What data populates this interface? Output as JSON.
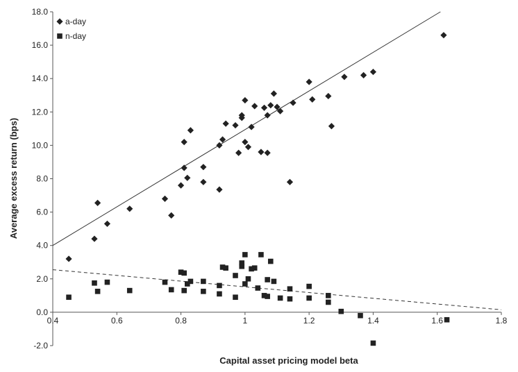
{
  "chart_data": {
    "type": "scatter",
    "title": "",
    "xlabel": "Capital asset pricing model beta",
    "ylabel": "Average excess return (bps)",
    "xlim": [
      0.4,
      1.8
    ],
    "ylim": [
      -2.0,
      18.0
    ],
    "x_ticks": [
      "0.4",
      "0.6",
      "0.8",
      "1",
      "1.2",
      "1.4",
      "1.6",
      "1.8"
    ],
    "y_ticks": [
      "-2.0",
      "0.0",
      "2.0",
      "4.0",
      "6.0",
      "8.0",
      "10.0",
      "12.0",
      "14.0",
      "16.0",
      "18.0"
    ],
    "grid": false,
    "legend_position": "top-left",
    "series": [
      {
        "name": "a-day",
        "marker": "diamond",
        "color": "#222222",
        "points": [
          [
            0.45,
            3.2
          ],
          [
            0.53,
            4.4
          ],
          [
            0.54,
            6.55
          ],
          [
            0.57,
            5.3
          ],
          [
            0.64,
            6.2
          ],
          [
            0.75,
            6.8
          ],
          [
            0.77,
            5.8
          ],
          [
            0.8,
            7.6
          ],
          [
            0.81,
            8.65
          ],
          [
            0.81,
            10.2
          ],
          [
            0.82,
            8.05
          ],
          [
            0.83,
            10.9
          ],
          [
            0.87,
            8.7
          ],
          [
            0.87,
            7.8
          ],
          [
            0.92,
            7.35
          ],
          [
            0.92,
            10.0
          ],
          [
            0.93,
            10.35
          ],
          [
            0.94,
            11.3
          ],
          [
            0.97,
            11.2
          ],
          [
            0.98,
            9.55
          ],
          [
            0.99,
            11.8
          ],
          [
            0.99,
            11.65
          ],
          [
            1.0,
            12.7
          ],
          [
            1.0,
            10.2
          ],
          [
            1.01,
            9.9
          ],
          [
            1.02,
            11.1
          ],
          [
            1.03,
            12.35
          ],
          [
            1.05,
            9.6
          ],
          [
            1.06,
            12.25
          ],
          [
            1.07,
            9.55
          ],
          [
            1.07,
            11.8
          ],
          [
            1.08,
            12.4
          ],
          [
            1.09,
            13.1
          ],
          [
            1.1,
            12.3
          ],
          [
            1.11,
            12.05
          ],
          [
            1.14,
            7.8
          ],
          [
            1.15,
            12.55
          ],
          [
            1.2,
            13.8
          ],
          [
            1.21,
            12.75
          ],
          [
            1.26,
            12.95
          ],
          [
            1.27,
            11.15
          ],
          [
            1.31,
            14.1
          ],
          [
            1.37,
            14.2
          ],
          [
            1.4,
            14.4
          ],
          [
            1.62,
            16.6
          ]
        ],
        "trendline": {
          "style": "solid",
          "x": [
            0.4,
            1.61
          ],
          "y": [
            4.0,
            18.0
          ]
        }
      },
      {
        "name": "n-day",
        "marker": "square",
        "color": "#222222",
        "points": [
          [
            0.45,
            0.9
          ],
          [
            0.53,
            1.75
          ],
          [
            0.54,
            1.25
          ],
          [
            0.57,
            1.8
          ],
          [
            0.64,
            1.3
          ],
          [
            0.75,
            1.8
          ],
          [
            0.77,
            1.35
          ],
          [
            0.8,
            2.4
          ],
          [
            0.81,
            1.3
          ],
          [
            0.81,
            2.35
          ],
          [
            0.82,
            1.7
          ],
          [
            0.83,
            1.85
          ],
          [
            0.87,
            1.25
          ],
          [
            0.87,
            1.85
          ],
          [
            0.92,
            1.6
          ],
          [
            0.92,
            1.1
          ],
          [
            0.93,
            2.7
          ],
          [
            0.94,
            2.65
          ],
          [
            0.97,
            0.9
          ],
          [
            0.97,
            2.2
          ],
          [
            0.99,
            2.75
          ],
          [
            0.99,
            2.95
          ],
          [
            1.0,
            3.45
          ],
          [
            1.0,
            1.7
          ],
          [
            1.01,
            2.0
          ],
          [
            1.02,
            2.6
          ],
          [
            1.03,
            2.65
          ],
          [
            1.04,
            1.45
          ],
          [
            1.05,
            3.45
          ],
          [
            1.06,
            1.0
          ],
          [
            1.07,
            0.95
          ],
          [
            1.07,
            1.95
          ],
          [
            1.08,
            3.05
          ],
          [
            1.09,
            1.85
          ],
          [
            1.11,
            0.85
          ],
          [
            1.14,
            1.4
          ],
          [
            1.14,
            0.8
          ],
          [
            1.2,
            0.85
          ],
          [
            1.2,
            1.55
          ],
          [
            1.26,
            1.0
          ],
          [
            1.26,
            0.6
          ],
          [
            1.3,
            0.05
          ],
          [
            1.36,
            -0.2
          ],
          [
            1.4,
            -1.85
          ],
          [
            1.63,
            -0.45
          ]
        ],
        "trendline": {
          "style": "dashed",
          "x": [
            0.4,
            1.8
          ],
          "y": [
            2.55,
            0.15
          ]
        }
      }
    ]
  }
}
